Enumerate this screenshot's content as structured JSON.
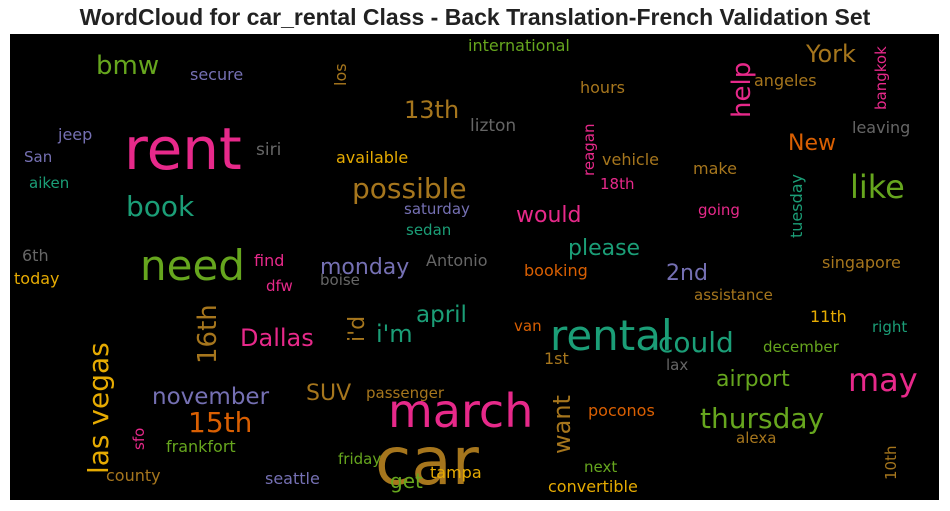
{
  "chart_data": {
    "type": "wordcloud",
    "title": "WordCloud for car_rental Class - Back Translation-French Validation Set",
    "background": "#000000",
    "words": [
      {
        "text": "car",
        "color": "#a6761d"
      },
      {
        "text": "rent",
        "color": "#e7298a"
      },
      {
        "text": "rental",
        "color": "#1b9e77"
      },
      {
        "text": "march",
        "color": "#e7298a"
      },
      {
        "text": "need",
        "color": "#66a61e"
      },
      {
        "text": "las vegas",
        "color": "#e6ab02"
      },
      {
        "text": "like",
        "color": "#66a61e"
      },
      {
        "text": "may",
        "color": "#e7298a"
      },
      {
        "text": "possible",
        "color": "#a6761d"
      },
      {
        "text": "thursday",
        "color": "#66a61e"
      },
      {
        "text": "help",
        "color": "#e7298a"
      },
      {
        "text": "book",
        "color": "#1b9e77"
      },
      {
        "text": "15th",
        "color": "#d95f02"
      },
      {
        "text": "could",
        "color": "#1b9e77"
      },
      {
        "text": "bmw",
        "color": "#66a61e"
      },
      {
        "text": "York",
        "color": "#a6761d"
      },
      {
        "text": "Dallas",
        "color": "#e7298a"
      },
      {
        "text": "i'm",
        "color": "#1b9e77"
      },
      {
        "text": "16th",
        "color": "#a6761d"
      },
      {
        "text": "november",
        "color": "#7570b3"
      },
      {
        "text": "airport",
        "color": "#66a61e"
      },
      {
        "text": "april",
        "color": "#1b9e77"
      },
      {
        "text": "13th",
        "color": "#a6761d"
      },
      {
        "text": "want",
        "color": "#a6761d"
      },
      {
        "text": "monday",
        "color": "#7570b3"
      },
      {
        "text": "please",
        "color": "#1b9e77"
      },
      {
        "text": "would",
        "color": "#e7298a"
      },
      {
        "text": "New",
        "color": "#d95f02"
      },
      {
        "text": "2nd",
        "color": "#7570b3"
      },
      {
        "text": "SUV",
        "color": "#a6761d"
      },
      {
        "text": "i'd",
        "color": "#a6761d"
      },
      {
        "text": "get",
        "color": "#66a61e"
      },
      {
        "text": "international",
        "color": "#66a61e"
      },
      {
        "text": "secure",
        "color": "#7570b3"
      },
      {
        "text": "los",
        "color": "#a6761d"
      },
      {
        "text": "bangkok",
        "color": "#e7298a"
      },
      {
        "text": "hours",
        "color": "#a6761d"
      },
      {
        "text": "angeles",
        "color": "#a6761d"
      },
      {
        "text": "jeep",
        "color": "#7570b3"
      },
      {
        "text": "siri",
        "color": "#666666"
      },
      {
        "text": "lizton",
        "color": "#666666"
      },
      {
        "text": "reagan",
        "color": "#e7298a"
      },
      {
        "text": "leaving",
        "color": "#666666"
      },
      {
        "text": "San",
        "color": "#7570b3"
      },
      {
        "text": "available",
        "color": "#e6ab02"
      },
      {
        "text": "vehicle",
        "color": "#a6761d"
      },
      {
        "text": "make",
        "color": "#a6761d"
      },
      {
        "text": "aiken",
        "color": "#1b9e77"
      },
      {
        "text": "18th",
        "color": "#e7298a"
      },
      {
        "text": "tuesday",
        "color": "#1b9e77"
      },
      {
        "text": "saturday",
        "color": "#7570b3"
      },
      {
        "text": "going",
        "color": "#e7298a"
      },
      {
        "text": "sedan",
        "color": "#1b9e77"
      },
      {
        "text": "6th",
        "color": "#666666"
      },
      {
        "text": "find",
        "color": "#e7298a"
      },
      {
        "text": "Antonio",
        "color": "#666666"
      },
      {
        "text": "singapore",
        "color": "#a6761d"
      },
      {
        "text": "today",
        "color": "#e6ab02"
      },
      {
        "text": "dfw",
        "color": "#e7298a"
      },
      {
        "text": "boise",
        "color": "#666666"
      },
      {
        "text": "booking",
        "color": "#d95f02"
      },
      {
        "text": "assistance",
        "color": "#a6761d"
      },
      {
        "text": "11th",
        "color": "#e6ab02"
      },
      {
        "text": "van",
        "color": "#d95f02"
      },
      {
        "text": "right",
        "color": "#1b9e77"
      },
      {
        "text": "december",
        "color": "#66a61e"
      },
      {
        "text": "1st",
        "color": "#a6761d"
      },
      {
        "text": "lax",
        "color": "#666666"
      },
      {
        "text": "passenger",
        "color": "#a6761d"
      },
      {
        "text": "poconos",
        "color": "#d95f02"
      },
      {
        "text": "sfo",
        "color": "#e7298a"
      },
      {
        "text": "frankfort",
        "color": "#66a61e"
      },
      {
        "text": "alexa",
        "color": "#a6761d"
      },
      {
        "text": "friday",
        "color": "#66a61e"
      },
      {
        "text": "next",
        "color": "#66a61e"
      },
      {
        "text": "10th",
        "color": "#a6761d"
      },
      {
        "text": "county",
        "color": "#a6761d"
      },
      {
        "text": "seattle",
        "color": "#7570b3"
      },
      {
        "text": "tampa",
        "color": "#e6ab02"
      },
      {
        "text": "convertible",
        "color": "#e6ab02"
      }
    ]
  }
}
